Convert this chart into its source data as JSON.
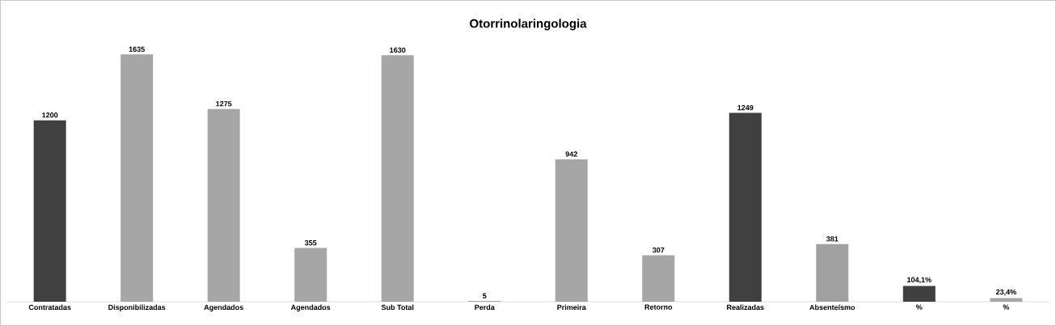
{
  "chart_data": {
    "type": "bar",
    "title": "Otorrinolaringologia",
    "categories": [
      "Contratadas",
      "Disponibilizadas",
      "Agendados",
      "Agendados",
      "Sub Total",
      "Perda",
      "Primeira",
      "Retorno",
      "Realizadas",
      "Absenteísmo",
      "%",
      "%"
    ],
    "values": [
      1200,
      1635,
      1275,
      355,
      1630,
      5,
      942,
      307,
      1249,
      381,
      104.1,
      23.4
    ],
    "colors": [
      "#404040",
      "#a6a6a6",
      "#a6a6a6",
      "#a6a6a6",
      "#a6a6a6",
      "#a6a6a6",
      "#a6a6a6",
      "#a6a6a6",
      "#404040",
      "#a0a0a0",
      "#404040",
      "#a6a6a6"
    ],
    "value_labels": [
      "1200",
      "1635",
      "1275",
      "355",
      "1630",
      "5",
      "942",
      "307",
      "1249",
      "381",
      "104,1%",
      "23,4%"
    ]
  }
}
